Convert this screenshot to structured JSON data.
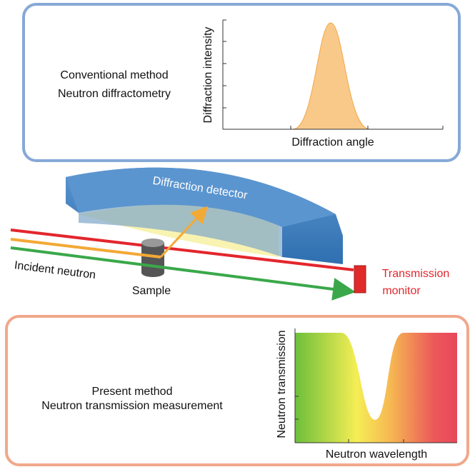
{
  "conventional": {
    "title": "Conventional method",
    "subtitle": "Neutron diffractometry",
    "y_label": "Diffraction intensity",
    "x_label": "Diffraction angle"
  },
  "setup": {
    "detector": "Diffraction detector",
    "incident": "Incident neutron",
    "sample": "Sample",
    "monitor_line1": "Transmission",
    "monitor_line2": "monitor"
  },
  "present": {
    "title": "Present method",
    "subtitle": "Neutron transmission measurement",
    "y_label": "Neutron transmission",
    "x_label": "Neutron wavelength"
  }
}
